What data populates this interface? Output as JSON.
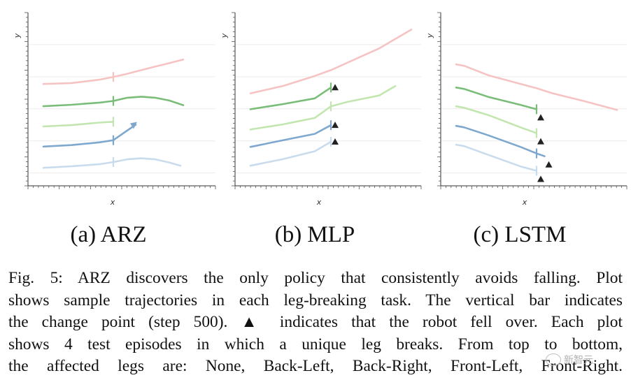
{
  "chart_data": [
    {
      "type": "line",
      "panel": "a",
      "subcaption": "(a) ARZ",
      "xlabel": "x",
      "ylabel": "y",
      "change_point_x": 0.5,
      "series": [
        {
          "name": "None",
          "color": "#f6c3c3",
          "fell": false,
          "x": [
            0.0,
            0.2,
            0.4,
            0.5,
            0.6,
            0.7,
            0.8,
            0.9,
            1.0
          ],
          "y": [
            4.1,
            4.14,
            4.3,
            4.43,
            4.58,
            4.75,
            4.92,
            5.08,
            5.25
          ]
        },
        {
          "name": "Back-Left",
          "color": "#79bd79",
          "fell": false,
          "x": [
            0.0,
            0.2,
            0.4,
            0.5,
            0.6,
            0.7,
            0.8,
            0.9,
            1.0
          ],
          "y": [
            3.05,
            3.12,
            3.22,
            3.3,
            3.45,
            3.5,
            3.45,
            3.32,
            3.1
          ]
        },
        {
          "name": "Back-Right",
          "color": "#c3e6b0",
          "fell": false,
          "x": [
            0.0,
            0.2,
            0.4,
            0.5
          ],
          "y": [
            2.1,
            2.16,
            2.28,
            2.32
          ]
        },
        {
          "name": "Front-Left",
          "color": "#7fa8cf",
          "fell": false,
          "x": [
            0.0,
            0.2,
            0.4,
            0.5,
            0.55,
            0.62,
            0.66
          ],
          "y": [
            1.15,
            1.22,
            1.35,
            1.45,
            1.68,
            2.0,
            2.18
          ]
        },
        {
          "name": "Front-Right",
          "color": "#c9dced",
          "fell": false,
          "x": [
            0.0,
            0.2,
            0.4,
            0.5,
            0.6,
            0.7,
            0.8,
            0.9,
            0.98
          ],
          "y": [
            0.15,
            0.22,
            0.32,
            0.42,
            0.55,
            0.6,
            0.55,
            0.4,
            0.25
          ]
        }
      ]
    },
    {
      "type": "line",
      "panel": "b",
      "subcaption": "(b) MLP",
      "xlabel": "x",
      "ylabel": "y",
      "change_point_x": 0.5,
      "series": [
        {
          "name": "None",
          "color": "#f6c3c3",
          "fell": false,
          "x": [
            0.0,
            0.2,
            0.4,
            0.5,
            0.6,
            0.8,
            1.0
          ],
          "y": [
            6.1,
            6.6,
            7.3,
            7.7,
            8.2,
            9.2,
            10.5
          ]
        },
        {
          "name": "Back-Left",
          "color": "#79bd79",
          "fell": true,
          "x": [
            0.0,
            0.2,
            0.4,
            0.5
          ],
          "y": [
            5.0,
            5.35,
            5.75,
            6.5
          ]
        },
        {
          "name": "Back-Right",
          "color": "#c3e6b0",
          "fell": false,
          "x": [
            0.0,
            0.2,
            0.4,
            0.5,
            0.6,
            0.8,
            0.9
          ],
          "y": [
            3.6,
            3.95,
            4.4,
            5.2,
            5.5,
            5.95,
            6.6
          ]
        },
        {
          "name": "Front-Left",
          "color": "#7fa8cf",
          "fell": true,
          "x": [
            0.0,
            0.2,
            0.4,
            0.5
          ],
          "y": [
            2.4,
            2.85,
            3.3,
            3.9
          ]
        },
        {
          "name": "Front-Right",
          "color": "#c9dced",
          "fell": true,
          "x": [
            0.0,
            0.2,
            0.4,
            0.5
          ],
          "y": [
            1.1,
            1.55,
            2.1,
            2.75
          ]
        }
      ]
    },
    {
      "type": "line",
      "panel": "c",
      "subcaption": "(c) LSTM",
      "xlabel": "x",
      "ylabel": "y",
      "change_point_x": 0.5,
      "series": [
        {
          "name": "None",
          "color": "#f6c3c3",
          "fell": false,
          "x": [
            0.0,
            0.05,
            0.2,
            0.4,
            0.5,
            0.6,
            0.8,
            1.0
          ],
          "y": [
            8.1,
            8.0,
            7.35,
            6.75,
            6.45,
            6.1,
            5.55,
            4.95
          ]
        },
        {
          "name": "Back-Left",
          "color": "#79bd79",
          "fell": true,
          "x": [
            0.0,
            0.05,
            0.2,
            0.4,
            0.5
          ],
          "y": [
            6.5,
            6.4,
            5.85,
            5.3,
            5.0
          ]
        },
        {
          "name": "Back-Right",
          "color": "#c3e6b0",
          "fell": true,
          "x": [
            0.0,
            0.05,
            0.2,
            0.4,
            0.5
          ],
          "y": [
            5.2,
            5.1,
            4.6,
            3.75,
            3.35
          ]
        },
        {
          "name": "Front-Left",
          "color": "#7fa8cf",
          "fell": true,
          "x": [
            0.0,
            0.05,
            0.2,
            0.4,
            0.5,
            0.55
          ],
          "y": [
            3.85,
            3.75,
            3.2,
            2.4,
            1.95,
            1.75
          ]
        },
        {
          "name": "Front-Right",
          "color": "#c9dced",
          "fell": true,
          "x": [
            0.0,
            0.05,
            0.2,
            0.4,
            0.5
          ],
          "y": [
            2.55,
            2.45,
            1.85,
            1.05,
            0.75
          ]
        }
      ]
    }
  ],
  "caption": {
    "lines": [
      "Fig. 5: ARZ discovers the only policy that consistently avoids falling. Plot",
      "shows sample trajectories in each leg-breaking task. The vertical bar indicates",
      "the change point (step 500). ▲ indicates that the robot fell over. Each plot",
      "shows 4 test episodes in which a unique leg breaks. From top to bottom,",
      "the affected legs are: None, Back-Left, Back-Right, Front-Left, Front-Right."
    ]
  },
  "watermark": {
    "text": "新智元"
  }
}
